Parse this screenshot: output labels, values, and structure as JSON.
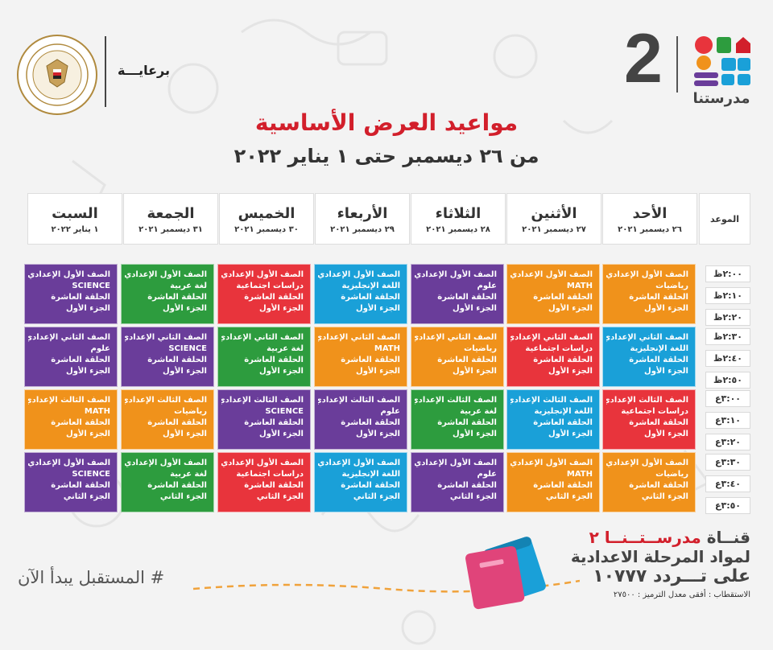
{
  "header": {
    "sponsor_label": "برعايـــة",
    "channel_number": "2",
    "brand_name": "مدرستنا",
    "title": "مواعيد العرض الأساسية",
    "date_range": "من ٢٦ ديسمبر حتى ١ يناير ٢٠٢٢"
  },
  "table": {
    "time_header": "الموعد",
    "days": [
      {
        "name": "الأحد",
        "date": "٢٦ ديسمبر ٢٠٢١"
      },
      {
        "name": "الأثنين",
        "date": "٢٧ ديسمبر ٢٠٢١"
      },
      {
        "name": "الثلاثاء",
        "date": "٢٨ ديسمبر ٢٠٢١"
      },
      {
        "name": "الأربعاء",
        "date": "٢٩ ديسمبر ٢٠٢١"
      },
      {
        "name": "الخميس",
        "date": "٣٠ ديسمبر ٢٠٢١"
      },
      {
        "name": "الجمعة",
        "date": "٣١ ديسمبر ٢٠٢١"
      },
      {
        "name": "السبت",
        "date": "١ يناير ٢٠٢٢"
      }
    ],
    "times": [
      "٢:٠٠ظ",
      "٢:١٠ظ",
      "٢:٢٠ظ",
      "٢:٣٠ظ",
      "٢:٤٠ظ",
      "٢:٥٠ظ",
      "٣:٠٠ع",
      "٣:١٠ع",
      "٣:٢٠ع",
      "٣:٣٠ع",
      "٣:٤٠ع",
      "٣:٥٠ع"
    ],
    "rows": [
      [
        {
          "lines": [
            "الصف الأول الإعدادي",
            "رياضيات",
            "الحلقة العاشرة",
            "الجزء الأول"
          ],
          "color": "#f0921b"
        },
        {
          "lines": [
            "الصف الأول الإعدادي",
            "MATH",
            "الحلقة العاشرة",
            "الجزء الأول"
          ],
          "color": "#f0921b"
        },
        {
          "lines": [
            "الصف الأول الإعدادي",
            "علوم",
            "الحلقة العاشرة",
            "الجزء الأول"
          ],
          "color": "#6a3d9a"
        },
        {
          "lines": [
            "الصف الأول الإعدادي",
            "اللغة الإنجليزية",
            "الحلقة العاشرة",
            "الجزء الأول"
          ],
          "color": "#1aa0d8"
        },
        {
          "lines": [
            "الصف الأول الإعدادي",
            "دراسات اجتماعية",
            "الحلقة العاشرة",
            "الجزء الأول"
          ],
          "color": "#e8343c"
        },
        {
          "lines": [
            "الصف الأول الإعدادي",
            "لغة عربية",
            "الحلقة العاشرة",
            "الجزء الأول"
          ],
          "color": "#2d9c3e"
        },
        {
          "lines": [
            "الصف الأول الإعدادي",
            "SCIENCE",
            "الحلقة العاشرة",
            "الجزء الأول"
          ],
          "color": "#6a3d9a"
        }
      ],
      [
        {
          "lines": [
            "الصف الثاني الإعدادي",
            "اللغة الإنجليزية",
            "الحلقة العاشرة",
            "الجزء الأول"
          ],
          "color": "#1aa0d8"
        },
        {
          "lines": [
            "الصف الثاني الإعدادي",
            "دراسات اجتماعية",
            "الحلقة العاشرة",
            "الجزء الأول"
          ],
          "color": "#e8343c"
        },
        {
          "lines": [
            "الصف الثاني الإعدادي",
            "رياضيات",
            "الحلقة العاشرة",
            "الجزء الأول"
          ],
          "color": "#f0921b"
        },
        {
          "lines": [
            "الصف الثاني الإعدادي",
            "MATH",
            "الحلقة العاشرة",
            "الجزء الأول"
          ],
          "color": "#f0921b"
        },
        {
          "lines": [
            "الصف الثاني الإعدادي",
            "لغة عربية",
            "الحلقة العاشرة",
            "الجزء الأول"
          ],
          "color": "#2d9c3e"
        },
        {
          "lines": [
            "الصف الثاني الإعدادي",
            "SCIENCE",
            "الحلقة العاشرة",
            "الجزء الأول"
          ],
          "color": "#6a3d9a"
        },
        {
          "lines": [
            "الصف الثاني الإعدادي",
            "علوم",
            "الحلقة العاشرة",
            "الجزء الأول"
          ],
          "color": "#6a3d9a"
        }
      ],
      [
        {
          "lines": [
            "الصف الثالث الإعدادي",
            "دراسات اجتماعية",
            "الحلقة العاشرة",
            "الجزء الأول"
          ],
          "color": "#e8343c"
        },
        {
          "lines": [
            "الصف الثالث الإعدادي",
            "اللغة الإنجليزية",
            "الحلقة العاشرة",
            "الجزء الأول"
          ],
          "color": "#1aa0d8"
        },
        {
          "lines": [
            "الصف الثالث الإعدادي",
            "لغة عربية",
            "الحلقة العاشرة",
            "الجزء الأول"
          ],
          "color": "#2d9c3e"
        },
        {
          "lines": [
            "الصف الثالث الإعدادي",
            "علوم",
            "الحلقة العاشرة",
            "الجزء الأول"
          ],
          "color": "#6a3d9a"
        },
        {
          "lines": [
            "الصف الثالث الإعدادي",
            "SCIENCE",
            "الحلقة العاشرة",
            "الجزء الأول"
          ],
          "color": "#6a3d9a"
        },
        {
          "lines": [
            "الصف الثالث الإعدادي",
            "رياضيات",
            "الحلقة العاشرة",
            "الجزء الأول"
          ],
          "color": "#f0921b"
        },
        {
          "lines": [
            "الصف الثالث الإعدادي",
            "MATH",
            "الحلقة العاشرة",
            "الجزء الأول"
          ],
          "color": "#f0921b"
        }
      ],
      [
        {
          "lines": [
            "الصف الأول الإعدادي",
            "رياضيات",
            "الحلقة العاشرة",
            "الجزء الثاني"
          ],
          "color": "#f0921b"
        },
        {
          "lines": [
            "الصف الأول الإعدادي",
            "MATH",
            "الحلقة العاشرة",
            "الجزء الثاني"
          ],
          "color": "#f0921b"
        },
        {
          "lines": [
            "الصف الأول الإعدادي",
            "علوم",
            "الحلقة العاشرة",
            "الجزء الثاني"
          ],
          "color": "#6a3d9a"
        },
        {
          "lines": [
            "الصف الأول الإعدادي",
            "اللغة الإنجليزية",
            "الحلقة العاشرة",
            "الجزء الثاني"
          ],
          "color": "#1aa0d8"
        },
        {
          "lines": [
            "الصف الأول الإعدادي",
            "دراسات اجتماعية",
            "الحلقة العاشرة",
            "الجزء الثاني"
          ],
          "color": "#e8343c"
        },
        {
          "lines": [
            "الصف الأول الإعدادي",
            "لغة عربية",
            "الحلقة العاشرة",
            "الجزء الثاني"
          ],
          "color": "#2d9c3e"
        },
        {
          "lines": [
            "الصف الأول الإعدادي",
            "SCIENCE",
            "الحلقة العاشرة",
            "الجزء الثاني"
          ],
          "color": "#6a3d9a"
        }
      ]
    ]
  },
  "footer": {
    "hashtag": "# المستقبل يبدأ الآن",
    "promo_prefix": "قنــاة ",
    "promo_brand": "مدرســتــنــا ٢",
    "promo_line2": "لمواد المرحلة الاعدادية",
    "promo_line3": "على تـــردد ١٠٧٧٧",
    "promo_line4": "الاستقطاب : أفقى معدل الترميز : ٢٧٥٠٠"
  },
  "colors": {
    "title_red": "#d21f2b",
    "orange": "#f0921b",
    "purple": "#6a3d9a",
    "blue": "#1aa0d8",
    "red": "#e8343c",
    "green": "#2d9c3e"
  }
}
